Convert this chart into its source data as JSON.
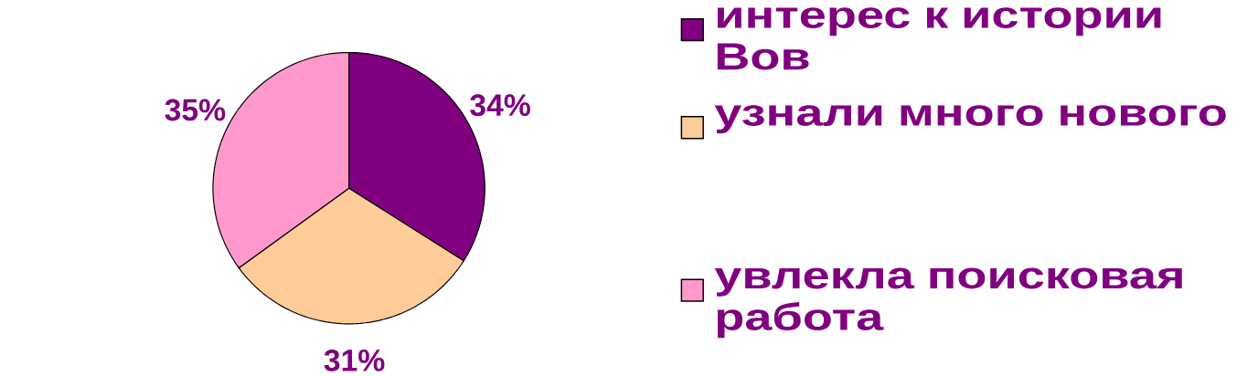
{
  "chart_data": {
    "type": "pie",
    "categories": [
      "интерес к истории Вов",
      "узнали много нового",
      "увлекла поисковая работа"
    ],
    "values": [
      34,
      31,
      35
    ],
    "value_labels": [
      "34%",
      "31%",
      "35%"
    ],
    "colors": [
      "#800080",
      "#ffcc99",
      "#ff99cc"
    ],
    "legend": "right"
  }
}
